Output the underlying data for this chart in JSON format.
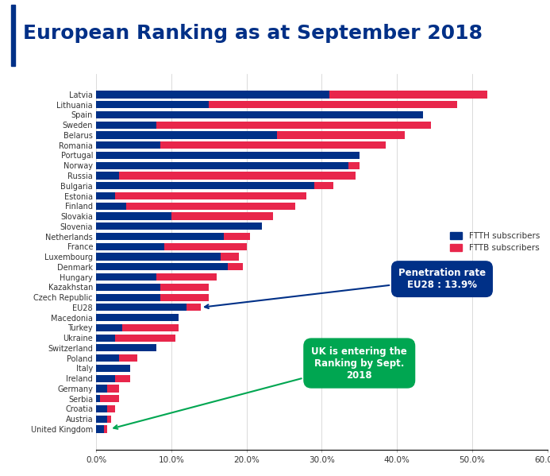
{
  "title": "European Ranking as at September 2018",
  "title_color": "#003087",
  "title_fontsize": 18,
  "countries": [
    "Latvia",
    "Lithuania",
    "Spain",
    "Sweden",
    "Belarus",
    "Romania",
    "Portugal",
    "Norway",
    "Russia",
    "Bulgaria",
    "Estonia",
    "Finland",
    "Slovakia",
    "Slovenia",
    "Netherlands",
    "France",
    "Luxembourg",
    "Denmark",
    "Hungary",
    "Kazakhstan",
    "Czech Republic",
    "EU28",
    "Macedonia",
    "Turkey",
    "Ukraine",
    "Switzerland",
    "Poland",
    "Italy",
    "Ireland",
    "Germany",
    "Serbia",
    "Croatia",
    "Austria",
    "United Kingdom"
  ],
  "ftth": [
    31.0,
    15.0,
    43.5,
    8.0,
    24.0,
    8.5,
    35.0,
    33.5,
    3.0,
    29.0,
    2.5,
    4.0,
    10.0,
    22.0,
    17.0,
    9.0,
    16.5,
    17.5,
    8.0,
    8.5,
    8.5,
    12.0,
    11.0,
    3.5,
    2.5,
    8.0,
    3.0,
    4.5,
    2.5,
    1.5,
    0.5,
    1.5,
    1.5,
    1.0
  ],
  "fttb": [
    21.0,
    33.0,
    0.0,
    36.5,
    17.0,
    30.0,
    0.0,
    1.5,
    31.5,
    2.5,
    25.5,
    22.5,
    13.5,
    0.0,
    3.5,
    11.0,
    2.5,
    2.0,
    8.0,
    6.5,
    6.5,
    1.9,
    0.0,
    7.5,
    8.0,
    0.0,
    2.5,
    0.0,
    2.0,
    1.5,
    2.5,
    1.0,
    0.5,
    0.5
  ],
  "ftth_color": "#003087",
  "fttb_color": "#E8264B",
  "bg_color": "#FFFFFF",
  "xlim": [
    0,
    60
  ],
  "xticks": [
    0,
    10,
    20,
    30,
    40,
    50,
    60
  ],
  "xtick_labels": [
    "0.0%",
    "10.0%",
    "20.0%",
    "30.0%",
    "40.0%",
    "50.0%",
    "60.0%"
  ],
  "bar_height": 0.72,
  "annotation1_text": "Penetration rate\nEU28 : 13.9%",
  "annotation1_bbox_color": "#003087",
  "annotation2_text": "UK is entering the\nRanking by Sept.\n2018",
  "annotation2_bbox_color": "#00A651",
  "legend_ftth": "FTTH subscribers",
  "legend_fttb": "FTTB subscribers",
  "vline_color": "#003087"
}
